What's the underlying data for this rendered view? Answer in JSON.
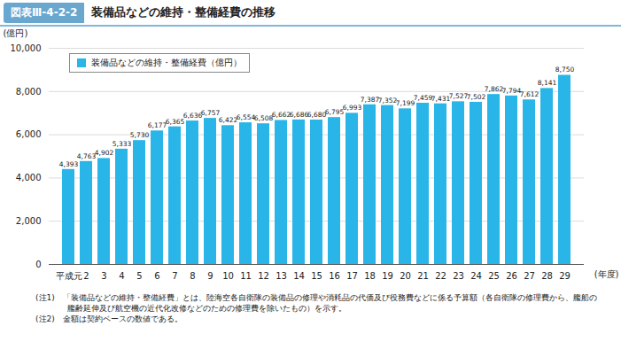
{
  "chart_data": {
    "type": "bar",
    "figure_label": "図表Ⅲ-4-2-2",
    "title": "装備品などの維持・整備経費の推移",
    "y_label": "(億円)",
    "x_label": "(年度)",
    "categories": [
      "平成元",
      "2",
      "3",
      "4",
      "5",
      "6",
      "7",
      "8",
      "9",
      "10",
      "11",
      "12",
      "13",
      "14",
      "15",
      "16",
      "17",
      "18",
      "19",
      "20",
      "21",
      "22",
      "23",
      "24",
      "25",
      "26",
      "27",
      "28",
      "29"
    ],
    "series": [
      {
        "name": "装備品などの維持・整備経費（億円）",
        "color": "#29b5e8",
        "values": [
          4393,
          4763,
          4902,
          5333,
          5730,
          6177,
          6365,
          6636,
          6757,
          6422,
          6554,
          6508,
          6662,
          6686,
          6680,
          6795,
          6993,
          7387,
          7352,
          7199,
          7459,
          7431,
          7527,
          7502,
          7862,
          7794,
          7612,
          8141,
          8750
        ],
        "value_labels": [
          "4,393",
          "4,763",
          "4,902",
          "5,333",
          "5,730",
          "6,177",
          "6,365",
          "6,636",
          "6,757",
          "6,422",
          "6,554",
          "6,508",
          "6,662",
          "6,686",
          "6,680",
          "6,795",
          "6,993",
          "7,387",
          "7,352",
          "7,199",
          "7,459",
          "7,431",
          "7,527",
          "7,502",
          "7,862",
          "7,794",
          "7,612",
          "8,141",
          "8,750"
        ]
      }
    ],
    "ylim": [
      0,
      10000
    ],
    "yticks": [
      0,
      {
        "value": 2000,
        "label": "2,000"
      },
      {
        "value": 4000,
        "label": "4,000"
      },
      {
        "value": 6000,
        "label": "6,000"
      },
      {
        "value": 8000,
        "label": "8,000"
      },
      {
        "value": 10000,
        "label": "10,000"
      }
    ],
    "grid": true,
    "legend": "top-left",
    "data_labels": true,
    "notes": [
      "(注1)　「装備品などの維持・整備経費」とは、陸海空各自衛隊の装備品の修理や消耗品の代価及び役務費などに係る予算額（各自衛隊の修理費から、艦船の艦齢延伸及び航空機の近代化改修などのための修理費を除いたもの）を示す。",
      "(注2)　金額は契約ベースの数値である。"
    ]
  }
}
